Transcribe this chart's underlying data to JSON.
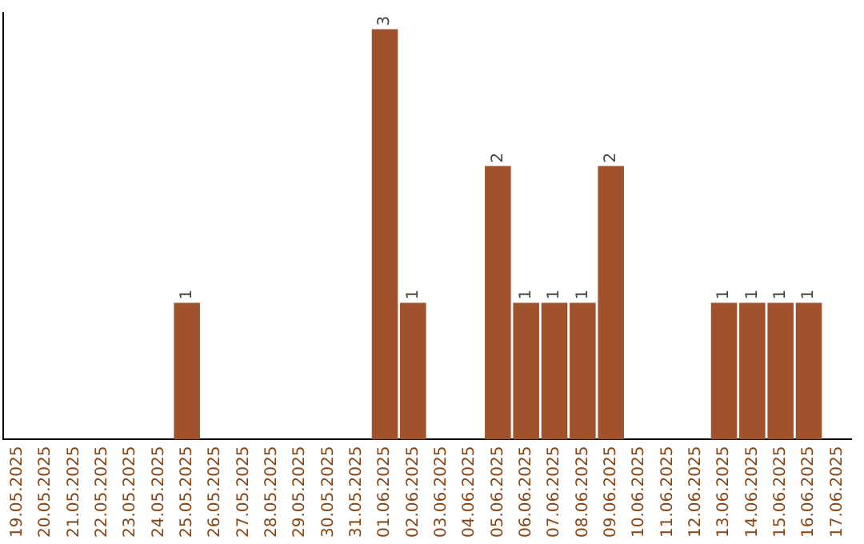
{
  "chart_data": {
    "type": "bar",
    "categories": [
      "19.05.2025",
      "20.05.2025",
      "21.05.2025",
      "22.05.2025",
      "23.05.2025",
      "24.05.2025",
      "25.05.2025",
      "26.05.2025",
      "27.05.2025",
      "28.05.2025",
      "29.05.2025",
      "30.05.2025",
      "31.05.2025",
      "01.06.2025",
      "02.06.2025",
      "03.06.2025",
      "04.06.2025",
      "05.06.2025",
      "06.06.2025",
      "07.06.2025",
      "08.06.2025",
      "09.06.2025",
      "10.06.2025",
      "11.06.2025",
      "12.06.2025",
      "13.06.2025",
      "14.06.2025",
      "15.06.2025",
      "16.06.2025",
      "17.06.2025"
    ],
    "values": [
      0,
      0,
      0,
      0,
      0,
      0,
      1,
      0,
      0,
      0,
      0,
      0,
      0,
      3,
      1,
      0,
      0,
      2,
      1,
      1,
      1,
      2,
      0,
      0,
      0,
      1,
      1,
      1,
      1,
      0
    ],
    "value_labels": [
      null,
      null,
      null,
      null,
      null,
      null,
      "1",
      null,
      null,
      null,
      null,
      null,
      null,
      "3",
      "1",
      null,
      null,
      "2",
      "1",
      "1",
      "1",
      "2",
      null,
      null,
      null,
      "1",
      "1",
      "1",
      "1",
      null
    ],
    "color": "#a0522d",
    "grid": false,
    "legend": false,
    "tick_labels": "x"
  }
}
